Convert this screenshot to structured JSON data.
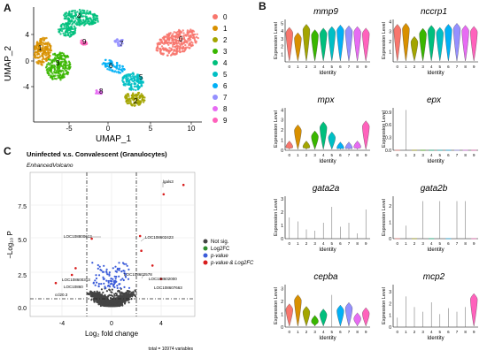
{
  "colors": {
    "clusters": [
      "#f8766d",
      "#d89000",
      "#a3a500",
      "#39b600",
      "#00bf7d",
      "#00bfc4",
      "#00b0f6",
      "#9590ff",
      "#e76bf3",
      "#ff62bc"
    ],
    "not_sig": "#444444",
    "log2fc": "#2e8b2e",
    "pvalue": "#3a5bd9",
    "both": "#d81c1c"
  },
  "panels": {
    "A": "A",
    "B": "B",
    "C": "C"
  },
  "umap": {
    "xlabel": "UMAP_1",
    "ylabel": "UMAP_2",
    "xticks": [
      "-5",
      "0",
      "5",
      "10"
    ],
    "yticks": [
      "4",
      "0",
      "-4"
    ],
    "legend": [
      "0",
      "1",
      "2",
      "3",
      "4",
      "5",
      "6",
      "7",
      "8",
      "9"
    ],
    "cluster_labels": [
      "0",
      "1",
      "2",
      "3",
      "4",
      "5",
      "6",
      "7",
      "8",
      "9"
    ]
  },
  "volcano": {
    "title": "Uninfected v.s. Convalescent (Granulocytes)",
    "subtitle": "EnhancedVolcano",
    "ylabel": "−Log₁₀ P",
    "xlabel": "Log₂ fold change",
    "xticks": [
      "-4",
      "0",
      "4"
    ],
    "yticks": [
      "7.5",
      "5.0",
      "2.5",
      "0.0"
    ],
    "legend": [
      "Not sig.",
      "Log2FC",
      "p-value",
      "p-value & Log2FC"
    ],
    "footer": "total = 10974 variables",
    "gene_labels": [
      "lgals3",
      "LOC108800612",
      "LOC108602423",
      "LOC108602578",
      "LOC108600313",
      "LOC108602000",
      "LOC10860",
      "LOC108607663",
      "ccl20.3"
    ]
  },
  "chart_data": {
    "type": "violin",
    "ylabel": "Expression Level",
    "xlabel": "Identity",
    "identities": [
      "0",
      "1",
      "2",
      "3",
      "4",
      "5",
      "6",
      "7",
      "8",
      "9"
    ],
    "genes": [
      {
        "name": "mmp9",
        "yticks": [
          "1",
          "2",
          "3",
          "4",
          "5"
        ],
        "ymax": 5.5,
        "medians": [
          3.8,
          3.1,
          4.2,
          3.5,
          3.7,
          3.9,
          4.1,
          4.0,
          3.9,
          3.7
        ]
      },
      {
        "name": "nccrp1",
        "yticks": [
          "1",
          "2",
          "3",
          "4"
        ],
        "ymax": 4.2,
        "medians": [
          3.2,
          3.3,
          2.0,
          2.8,
          3.1,
          2.9,
          3.2,
          3.3,
          3.1,
          3.0
        ]
      },
      {
        "name": "mpx",
        "yticks": [
          "0",
          "1",
          "2",
          "3",
          "4"
        ],
        "ymax": 4.2,
        "medians": [
          0.4,
          2.0,
          0.4,
          1.4,
          2.3,
          1.3,
          0.3,
          0.3,
          0.4,
          2.4
        ]
      },
      {
        "name": "epx",
        "yticks": [
          "0.0",
          "0.3",
          "0.6",
          "0.9"
        ],
        "ymax": 1.0,
        "medians": [
          0,
          0.95,
          0,
          0,
          0,
          0,
          0,
          0,
          0,
          0
        ]
      },
      {
        "name": "gata2a",
        "yticks": [
          "0",
          "1",
          "2",
          "3"
        ],
        "ymax": 3.2,
        "medians": [
          1.6,
          1.3,
          0.7,
          0.6,
          1.2,
          2.4,
          0.9,
          1.2,
          0.4,
          2.2
        ]
      },
      {
        "name": "gata2b",
        "yticks": [
          "0",
          "1",
          "2"
        ],
        "ymax": 2.6,
        "medians": [
          0,
          0.8,
          0,
          2.3,
          0,
          2.3,
          0,
          2.3,
          2.3,
          0
        ]
      },
      {
        "name": "cepba",
        "yticks": [
          "0",
          "1",
          "2",
          "3"
        ],
        "ymax": 3.3,
        "medians": [
          1.4,
          2.1,
          1.2,
          0.5,
          1.0,
          2.5,
          1.3,
          1.5,
          0.7,
          1.1
        ]
      },
      {
        "name": "mcp2",
        "yticks": [
          "0",
          "1",
          "2",
          "3"
        ],
        "ymax": 3.6,
        "medians": [
          0.8,
          2.6,
          1.7,
          1.3,
          2.1,
          1.1,
          1.6,
          1.3,
          1.7,
          2.4
        ]
      }
    ]
  }
}
